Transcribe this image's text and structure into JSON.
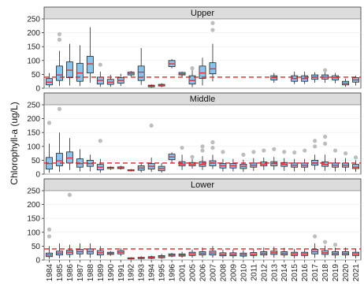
{
  "chart_data": {
    "type": "boxplot",
    "ylabel": "Chlorophyll-a (ug/L)",
    "ylim": [
      0,
      250
    ],
    "yticks": [
      0,
      50,
      100,
      150,
      200,
      250
    ],
    "reference_line": {
      "y": 40,
      "color": "#d62728",
      "style": "dashed"
    },
    "box_fill": "#8cc3ea",
    "median_color": "#e0303a",
    "outlier_color": "#bdbdbd",
    "strip_color": "#dcdcdc",
    "x_tick_labels": [
      "1984",
      "1985",
      "1986",
      "1987",
      "1988",
      "1989",
      "1990",
      "1991",
      "1992",
      "1993",
      "1994",
      "1995",
      "1996",
      "2001",
      "2005",
      "2006",
      "2007",
      "2008",
      "2009",
      "2010",
      "2011",
      "2012",
      "2013",
      "2014",
      "2015",
      "2016",
      "2017",
      "2018",
      "2019",
      "2020",
      "2021"
    ],
    "panels": [
      {
        "label": "Upper",
        "boxes": [
          {
            "x": "1984",
            "q1": 12,
            "med": 22,
            "q3": 35,
            "lo": 3,
            "hi": 55,
            "outliers": []
          },
          {
            "x": "1985",
            "q1": 28,
            "med": 48,
            "q3": 80,
            "lo": 8,
            "hi": 135,
            "outliers": [
              175,
              195
            ]
          },
          {
            "x": "1986",
            "q1": 38,
            "med": 65,
            "q3": 95,
            "lo": 10,
            "hi": 160,
            "outliers": []
          },
          {
            "x": "1987",
            "q1": 25,
            "med": 55,
            "q3": 90,
            "lo": 8,
            "hi": 155,
            "outliers": []
          },
          {
            "x": "1988",
            "q1": 55,
            "med": 88,
            "q3": 115,
            "lo": 20,
            "hi": 220,
            "outliers": []
          },
          {
            "x": "1989",
            "q1": 15,
            "med": 28,
            "q3": 40,
            "lo": 5,
            "hi": 60,
            "outliers": [
              85
            ]
          },
          {
            "x": "1990",
            "q1": 14,
            "med": 22,
            "q3": 32,
            "lo": 5,
            "hi": 48,
            "outliers": []
          },
          {
            "x": "1991",
            "q1": 18,
            "med": 28,
            "q3": 38,
            "lo": 8,
            "hi": 52,
            "outliers": []
          },
          {
            "x": "1992",
            "q1": 48,
            "med": 53,
            "q3": 58,
            "lo": 42,
            "hi": 62,
            "outliers": []
          },
          {
            "x": "1993",
            "q1": 28,
            "med": 58,
            "q3": 80,
            "lo": 12,
            "hi": 145,
            "outliers": []
          },
          {
            "x": "1994",
            "q1": 5,
            "med": 8,
            "q3": 11,
            "lo": 2,
            "hi": 14,
            "outliers": []
          },
          {
            "x": "1995",
            "q1": 8,
            "med": 11,
            "q3": 14,
            "lo": 4,
            "hi": 18,
            "outliers": []
          },
          {
            "x": "1996",
            "q1": 78,
            "med": 88,
            "q3": 100,
            "lo": 72,
            "hi": 105,
            "outliers": []
          },
          {
            "x": "2001",
            "q1": 48,
            "med": 52,
            "q3": 57,
            "lo": 42,
            "hi": 60,
            "outliers": []
          },
          {
            "x": "2005",
            "q1": 15,
            "med": 28,
            "q3": 45,
            "lo": 4,
            "hi": 65,
            "outliers": [
              72
            ]
          },
          {
            "x": "2006",
            "q1": 35,
            "med": 55,
            "q3": 80,
            "lo": 10,
            "hi": 110,
            "outliers": []
          },
          {
            "x": "2007",
            "q1": 52,
            "med": 70,
            "q3": 92,
            "lo": 25,
            "hi": 160,
            "outliers": [
              210,
              235
            ]
          },
          {
            "x": "2013",
            "q1": 30,
            "med": 38,
            "q3": 45,
            "lo": 20,
            "hi": 55,
            "outliers": []
          },
          {
            "x": "2015",
            "q1": 25,
            "med": 35,
            "q3": 45,
            "lo": 15,
            "hi": 60,
            "outliers": []
          },
          {
            "x": "2016",
            "q1": 25,
            "med": 35,
            "q3": 45,
            "lo": 15,
            "hi": 60,
            "outliers": []
          },
          {
            "x": "2017",
            "q1": 32,
            "med": 40,
            "q3": 48,
            "lo": 20,
            "hi": 58,
            "outliers": []
          },
          {
            "x": "2018",
            "q1": 33,
            "med": 40,
            "q3": 48,
            "lo": 20,
            "hi": 60,
            "outliers": [
              65
            ]
          },
          {
            "x": "2019",
            "q1": 30,
            "med": 38,
            "q3": 45,
            "lo": 18,
            "hi": 55,
            "outliers": []
          },
          {
            "x": "2020",
            "q1": 12,
            "med": 18,
            "q3": 25,
            "lo": 5,
            "hi": 35,
            "outliers": []
          },
          {
            "x": "2021",
            "q1": 22,
            "med": 30,
            "q3": 38,
            "lo": 10,
            "hi": 45,
            "outliers": []
          }
        ]
      },
      {
        "label": "Middle",
        "boxes": [
          {
            "x": "1984",
            "q1": 18,
            "med": 38,
            "q3": 60,
            "lo": 5,
            "hi": 110,
            "outliers": [
              185
            ]
          },
          {
            "x": "1985",
            "q1": 30,
            "med": 48,
            "q3": 75,
            "lo": 8,
            "hi": 150,
            "outliers": [
              235
            ]
          },
          {
            "x": "1986",
            "q1": 40,
            "med": 58,
            "q3": 80,
            "lo": 15,
            "hi": 130,
            "outliers": []
          },
          {
            "x": "1987",
            "q1": 25,
            "med": 38,
            "q3": 55,
            "lo": 10,
            "hi": 90,
            "outliers": []
          },
          {
            "x": "1988",
            "q1": 28,
            "med": 38,
            "q3": 50,
            "lo": 10,
            "hi": 70,
            "outliers": []
          },
          {
            "x": "1989",
            "q1": 15,
            "med": 25,
            "q3": 35,
            "lo": 5,
            "hi": 55,
            "outliers": [
              120
            ]
          },
          {
            "x": "1990",
            "q1": 20,
            "med": 22,
            "q3": 25,
            "lo": 15,
            "hi": 28,
            "outliers": []
          },
          {
            "x": "1991",
            "q1": 20,
            "med": 23,
            "q3": 26,
            "lo": 16,
            "hi": 30,
            "outliers": []
          },
          {
            "x": "1992",
            "q1": 12,
            "med": 14,
            "q3": 16,
            "lo": 10,
            "hi": 18,
            "outliers": []
          },
          {
            "x": "1993",
            "q1": 14,
            "med": 22,
            "q3": 30,
            "lo": 6,
            "hi": 42,
            "outliers": []
          },
          {
            "x": "1994",
            "q1": 18,
            "med": 28,
            "q3": 38,
            "lo": 8,
            "hi": 60,
            "outliers": [
              175
            ]
          },
          {
            "x": "1995",
            "q1": 12,
            "med": 20,
            "q3": 28,
            "lo": 5,
            "hi": 40,
            "outliers": []
          },
          {
            "x": "1996",
            "q1": 52,
            "med": 62,
            "q3": 72,
            "lo": 40,
            "hi": 78,
            "outliers": []
          },
          {
            "x": "2001",
            "q1": 30,
            "med": 36,
            "q3": 45,
            "lo": 15,
            "hi": 70,
            "outliers": [
              95
            ]
          },
          {
            "x": "2005",
            "q1": 30,
            "med": 36,
            "q3": 42,
            "lo": 20,
            "hi": 55,
            "outliers": [
              62
            ]
          },
          {
            "x": "2006",
            "q1": 28,
            "med": 35,
            "q3": 45,
            "lo": 15,
            "hi": 65,
            "outliers": [
              85,
              100
            ]
          },
          {
            "x": "2007",
            "q1": 30,
            "med": 40,
            "q3": 48,
            "lo": 18,
            "hi": 70,
            "outliers": [
              95,
              115
            ]
          },
          {
            "x": "2008",
            "q1": 22,
            "med": 30,
            "q3": 38,
            "lo": 10,
            "hi": 55,
            "outliers": [
              80
            ]
          },
          {
            "x": "2009",
            "q1": 22,
            "med": 30,
            "q3": 38,
            "lo": 10,
            "hi": 55,
            "outliers": []
          },
          {
            "x": "2010",
            "q1": 20,
            "med": 28,
            "q3": 36,
            "lo": 8,
            "hi": 52,
            "outliers": [
              70
            ]
          },
          {
            "x": "2011",
            "q1": 25,
            "med": 32,
            "q3": 40,
            "lo": 12,
            "hi": 58,
            "outliers": [
              80
            ]
          },
          {
            "x": "2012",
            "q1": 30,
            "med": 36,
            "q3": 44,
            "lo": 15,
            "hi": 60,
            "outliers": [
              85
            ]
          },
          {
            "x": "2013",
            "q1": 30,
            "med": 38,
            "q3": 45,
            "lo": 15,
            "hi": 62,
            "outliers": [
              90
            ]
          },
          {
            "x": "2014",
            "q1": 28,
            "med": 35,
            "q3": 42,
            "lo": 12,
            "hi": 58,
            "outliers": [
              80
            ]
          },
          {
            "x": "2015",
            "q1": 25,
            "med": 32,
            "q3": 40,
            "lo": 10,
            "hi": 55,
            "outliers": [
              78
            ]
          },
          {
            "x": "2016",
            "q1": 25,
            "med": 32,
            "q3": 40,
            "lo": 10,
            "hi": 55,
            "outliers": [
              85
            ]
          },
          {
            "x": "2017",
            "q1": 32,
            "med": 40,
            "q3": 50,
            "lo": 15,
            "hi": 70,
            "outliers": [
              100,
              120
            ]
          },
          {
            "x": "2018",
            "q1": 28,
            "med": 35,
            "q3": 44,
            "lo": 12,
            "hi": 70,
            "outliers": [
              110,
              135
            ]
          },
          {
            "x": "2019",
            "q1": 25,
            "med": 32,
            "q3": 40,
            "lo": 10,
            "hi": 58,
            "outliers": [
              85
            ]
          },
          {
            "x": "2020",
            "q1": 25,
            "med": 32,
            "q3": 40,
            "lo": 10,
            "hi": 58,
            "outliers": [
              75
            ]
          },
          {
            "x": "2021",
            "q1": 20,
            "med": 25,
            "q3": 35,
            "lo": 8,
            "hi": 50,
            "outliers": [
              60
            ]
          }
        ]
      },
      {
        "label": "Lower",
        "boxes": [
          {
            "x": "1984",
            "q1": 12,
            "med": 18,
            "q3": 25,
            "lo": 4,
            "hi": 50,
            "outliers": [
              85,
              110
            ]
          },
          {
            "x": "1985",
            "q1": 18,
            "med": 25,
            "q3": 32,
            "lo": 6,
            "hi": 60,
            "outliers": []
          },
          {
            "x": "1986",
            "q1": 20,
            "med": 28,
            "q3": 35,
            "lo": 8,
            "hi": 55,
            "outliers": [
              235
            ]
          },
          {
            "x": "1987",
            "q1": 22,
            "med": 30,
            "q3": 38,
            "lo": 8,
            "hi": 60,
            "outliers": []
          },
          {
            "x": "1988",
            "q1": 22,
            "med": 30,
            "q3": 40,
            "lo": 8,
            "hi": 60,
            "outliers": []
          },
          {
            "x": "1989",
            "q1": 18,
            "med": 26,
            "q3": 34,
            "lo": 6,
            "hi": 50,
            "outliers": []
          },
          {
            "x": "1990",
            "q1": 20,
            "med": 24,
            "q3": 28,
            "lo": 15,
            "hi": 32,
            "outliers": []
          },
          {
            "x": "1991",
            "q1": 22,
            "med": 28,
            "q3": 34,
            "lo": 14,
            "hi": 42,
            "outliers": []
          },
          {
            "x": "1992",
            "q1": 4,
            "med": 6,
            "q3": 8,
            "lo": 2,
            "hi": 10,
            "outliers": []
          },
          {
            "x": "1993",
            "q1": 5,
            "med": 8,
            "q3": 10,
            "lo": 2,
            "hi": 14,
            "outliers": []
          },
          {
            "x": "1994",
            "q1": 6,
            "med": 9,
            "q3": 12,
            "lo": 3,
            "hi": 16,
            "outliers": []
          },
          {
            "x": "1995",
            "q1": 8,
            "med": 12,
            "q3": 16,
            "lo": 4,
            "hi": 22,
            "outliers": []
          },
          {
            "x": "1996",
            "q1": 14,
            "med": 18,
            "q3": 22,
            "lo": 10,
            "hi": 26,
            "outliers": []
          },
          {
            "x": "2001",
            "q1": 14,
            "med": 18,
            "q3": 22,
            "lo": 8,
            "hi": 30,
            "outliers": []
          },
          {
            "x": "2005",
            "q1": 16,
            "med": 22,
            "q3": 28,
            "lo": 8,
            "hi": 38,
            "outliers": []
          },
          {
            "x": "2006",
            "q1": 18,
            "med": 24,
            "q3": 30,
            "lo": 8,
            "hi": 45,
            "outliers": []
          },
          {
            "x": "2007",
            "q1": 18,
            "med": 25,
            "q3": 32,
            "lo": 8,
            "hi": 50,
            "outliers": []
          },
          {
            "x": "2008",
            "q1": 15,
            "med": 20,
            "q3": 26,
            "lo": 6,
            "hi": 38,
            "outliers": []
          },
          {
            "x": "2009",
            "q1": 15,
            "med": 20,
            "q3": 26,
            "lo": 6,
            "hi": 38,
            "outliers": []
          },
          {
            "x": "2010",
            "q1": 14,
            "med": 19,
            "q3": 25,
            "lo": 6,
            "hi": 36,
            "outliers": []
          },
          {
            "x": "2011",
            "q1": 16,
            "med": 21,
            "q3": 27,
            "lo": 6,
            "hi": 40,
            "outliers": []
          },
          {
            "x": "2012",
            "q1": 18,
            "med": 24,
            "q3": 30,
            "lo": 8,
            "hi": 45,
            "outliers": []
          },
          {
            "x": "2013",
            "q1": 20,
            "med": 26,
            "q3": 32,
            "lo": 8,
            "hi": 48,
            "outliers": []
          },
          {
            "x": "2014",
            "q1": 18,
            "med": 24,
            "q3": 30,
            "lo": 8,
            "hi": 44,
            "outliers": []
          },
          {
            "x": "2015",
            "q1": 16,
            "med": 22,
            "q3": 28,
            "lo": 6,
            "hi": 40,
            "outliers": []
          },
          {
            "x": "2016",
            "q1": 16,
            "med": 22,
            "q3": 28,
            "lo": 6,
            "hi": 40,
            "outliers": []
          },
          {
            "x": "2017",
            "q1": 22,
            "med": 30,
            "q3": 38,
            "lo": 8,
            "hi": 60,
            "outliers": [
              85
            ]
          },
          {
            "x": "2018",
            "q1": 20,
            "med": 26,
            "q3": 34,
            "lo": 8,
            "hi": 52,
            "outliers": [
              65
            ]
          },
          {
            "x": "2019",
            "q1": 18,
            "med": 24,
            "q3": 30,
            "lo": 6,
            "hi": 45,
            "outliers": [
              55
            ]
          },
          {
            "x": "2020",
            "q1": 18,
            "med": 24,
            "q3": 30,
            "lo": 6,
            "hi": 45,
            "outliers": []
          },
          {
            "x": "2021",
            "q1": 16,
            "med": 22,
            "q3": 28,
            "lo": 6,
            "hi": 40,
            "outliers": []
          }
        ]
      }
    ]
  }
}
